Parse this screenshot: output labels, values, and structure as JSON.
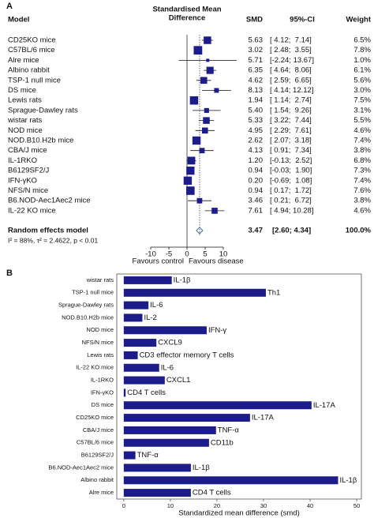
{
  "chart_data": [
    {
      "type": "forest",
      "panel": "A",
      "title_lines": [
        "Standardised Mean",
        "Difference"
      ],
      "column_headers": {
        "model": "Model",
        "smd": "SMD",
        "ci": "95%-CI",
        "weight": "Weight"
      },
      "categories": [
        "CD25KO mice",
        "C57BL/6 mice",
        "Alre mice",
        "Albino rabbit",
        "TSP-1 null mice",
        "DS mice",
        "Lewis rats",
        "Sprague-Dawley rats",
        "wistar rats",
        "NOD mice",
        "NOD.B10.H2b mice",
        "CBA/J mice",
        "IL-1RKO",
        "B6129SF2/J",
        "IFN-γKO",
        "NFS/N mice",
        "B6.NOD-Aec1Aec2 mice",
        "IL-22 KO mice"
      ],
      "values": [
        5.63,
        3.02,
        5.71,
        6.35,
        4.62,
        8.13,
        1.94,
        5.4,
        5.33,
        4.95,
        2.62,
        4.13,
        1.2,
        0.94,
        0.2,
        0.94,
        3.46,
        7.61
      ],
      "value_labels": [
        "5.63",
        "3.02",
        "5.71",
        "6.35",
        "4.62",
        "8.13",
        "1.94",
        "5.40",
        "5.33",
        "4.95",
        "2.62",
        "4.13",
        "1.20",
        "0.94",
        "0.20",
        "0.94",
        "3.46",
        "7.61"
      ],
      "ci_low": [
        4.12,
        2.48,
        -2.24,
        4.64,
        2.59,
        4.14,
        1.14,
        1.54,
        3.22,
        2.29,
        2.07,
        0.91,
        -0.13,
        -0.03,
        -0.69,
        0.17,
        0.21,
        4.94
      ],
      "ci_high": [
        7.14,
        3.55,
        13.67,
        8.06,
        6.65,
        12.12,
        2.74,
        9.26,
        7.44,
        7.61,
        3.18,
        7.34,
        2.52,
        1.9,
        1.08,
        1.72,
        6.72,
        10.28
      ],
      "ci_labels": [
        "[ 4.12;  7.14]",
        "[ 2.48;  3.55]",
        "[-2.24; 13.67]",
        "[ 4.64;  8.06]",
        "[ 2.59;  6.65]",
        "[ 4.14; 12.12]",
        "[ 1.14;  2.74]",
        "[ 1.54;  9.26]",
        "[ 3.22;  7.44]",
        "[ 2.29;  7.61]",
        "[ 2.07;  3.18]",
        "[ 0.91;  7.34]",
        "[-0.13;  2.52]",
        "[-0.03;  1.90]",
        "[-0.69;  1.08]",
        "[ 0.17;  1.72]",
        "[ 0.21;  6.72]",
        "[ 4.94; 10.28]"
      ],
      "weights": [
        6.5,
        7.8,
        1.0,
        6.1,
        5.6,
        3.0,
        7.5,
        3.1,
        5.5,
        4.6,
        7.4,
        3.8,
        6.8,
        7.3,
        7.4,
        7.6,
        3.8,
        4.6
      ],
      "weight_labels": [
        "6.5%",
        "7.8%",
        "1.0%",
        "6.1%",
        "5.6%",
        "3.0%",
        "7.5%",
        "3.1%",
        "5.5%",
        "4.6%",
        "7.4%",
        "3.8%",
        "6.8%",
        "7.3%",
        "7.4%",
        "7.6%",
        "3.8%",
        "4.6%"
      ],
      "summary": {
        "label": "Random effects model",
        "value": 3.47,
        "value_label": "3.47",
        "ci_low": 2.6,
        "ci_high": 4.34,
        "ci_label": "[2.60; 4.34]",
        "weight_label": "100.0%"
      },
      "heterogeneity": "I² = 88%, τ² = 2.4622, p < 0.01",
      "left_label": "Favours control",
      "right_label": "Favours disease",
      "xlim": [
        -10,
        10
      ],
      "xticks": [
        -10,
        -5,
        0,
        5,
        10
      ],
      "color": "#1c1c8a"
    },
    {
      "type": "barh",
      "panel": "B",
      "x_label": "Standardized mean difference (smd)",
      "categories": [
        "wistar rats",
        "TSP-1 null mice",
        "Sprague-Dawley rats",
        "NOD.B10.H2b mice",
        "NOD mice",
        "NFS/N mice",
        "Lewis rats",
        "IL-22 KO mice",
        "IL-1RKO",
        "IFN-γKO",
        "DS mice",
        "CD25KO mice",
        "CBA/J mice",
        "C57BL/6 mice",
        "B6129SF2/J",
        "B6.NOD-Aec1Aec2 mice",
        "Albino rabbit",
        "Alre mice"
      ],
      "values": [
        10.3,
        30.5,
        5.3,
        4,
        17.8,
        7,
        3,
        7.6,
        8.8,
        0.4,
        40.3,
        27.1,
        19.8,
        18.3,
        2.5,
        14.4,
        46,
        14.4
      ],
      "bar_labels": [
        "IL-1β",
        "Th1",
        "IL-6",
        "IL-2",
        "IFN-γ",
        "CXCL9",
        "CD3 effector memory T cells",
        "IL-6",
        "CXCL1",
        "CD4 T cells",
        "IL-17A",
        "IL-17A",
        "TNF-α",
        "CD11b",
        "TNF-α",
        "IL-1β",
        "IL-1β",
        "CD4 T cells"
      ],
      "xlim": [
        -1.5,
        51
      ],
      "xticks": [
        0,
        10,
        20,
        30,
        40,
        50
      ],
      "color": "#1c1c8a"
    }
  ]
}
